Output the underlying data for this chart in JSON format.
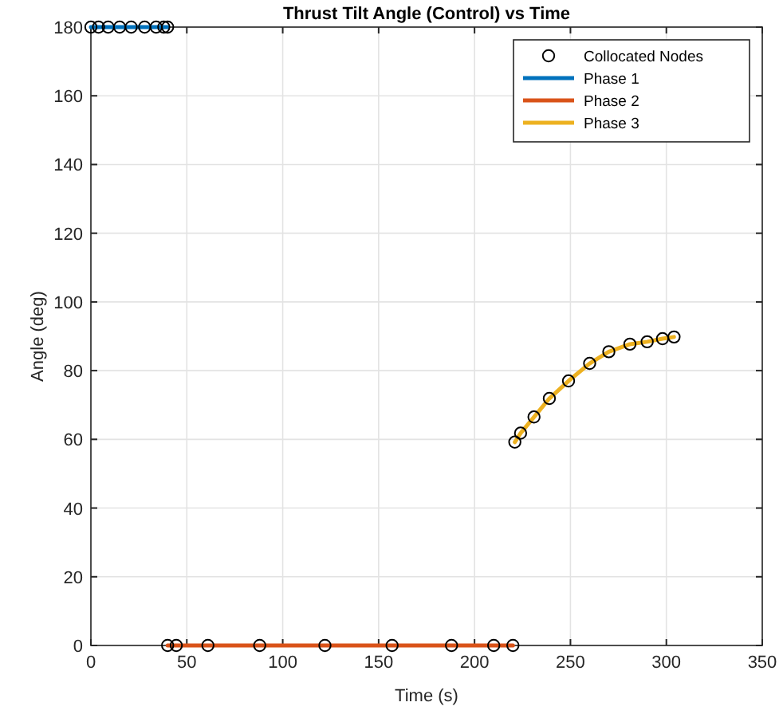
{
  "chart_data": {
    "type": "line",
    "title": "Thrust Tilt Angle (Control) vs Time",
    "xlabel": "Time (s)",
    "ylabel": "Angle (deg)",
    "xlim": [
      0,
      350
    ],
    "xticks": [
      0,
      50,
      100,
      150,
      200,
      250,
      300,
      350
    ],
    "ylim": [
      0,
      180
    ],
    "yticks": [
      0,
      20,
      40,
      60,
      80,
      100,
      120,
      140,
      160,
      180
    ],
    "grid": true,
    "legend": "top right",
    "series": [
      {
        "name": "Collocated Nodes",
        "type": "scatter",
        "marker": "circle",
        "color": "#000000",
        "x": [
          0,
          4,
          9,
          15,
          21,
          28,
          34,
          38,
          40,
          40,
          44.5,
          61,
          88,
          122,
          157,
          188,
          210,
          220,
          221,
          224,
          231,
          239,
          249,
          260,
          270,
          281,
          290,
          298,
          304
        ],
        "values": [
          180,
          180,
          180,
          180,
          180,
          180,
          180,
          180,
          180,
          0,
          0,
          0,
          0,
          0,
          0,
          0,
          0,
          0,
          59.2,
          61.8,
          66.5,
          71.9,
          77,
          82.1,
          85.5,
          87.7,
          88.4,
          89.3,
          89.8
        ]
      },
      {
        "name": "Phase 1",
        "type": "line",
        "color": "#0072bd",
        "x": [
          0,
          4,
          9,
          15,
          21,
          28,
          34,
          38,
          40
        ],
        "values": [
          180,
          180,
          180,
          180,
          180,
          180,
          180,
          180,
          180
        ]
      },
      {
        "name": "Phase 2",
        "type": "line",
        "color": "#d95319",
        "x": [
          40,
          44.5,
          61,
          88,
          122,
          157,
          188,
          210,
          220
        ],
        "values": [
          0,
          0,
          0,
          0,
          0,
          0,
          0,
          0,
          0
        ]
      },
      {
        "name": "Phase 3",
        "type": "line",
        "color": "#edb120",
        "x": [
          221,
          224,
          231,
          239,
          249,
          260,
          270,
          281,
          290,
          298,
          304
        ],
        "values": [
          59.2,
          61.8,
          66.5,
          71.9,
          77,
          82.1,
          85.5,
          87.7,
          88.4,
          89.3,
          89.8
        ]
      }
    ]
  }
}
